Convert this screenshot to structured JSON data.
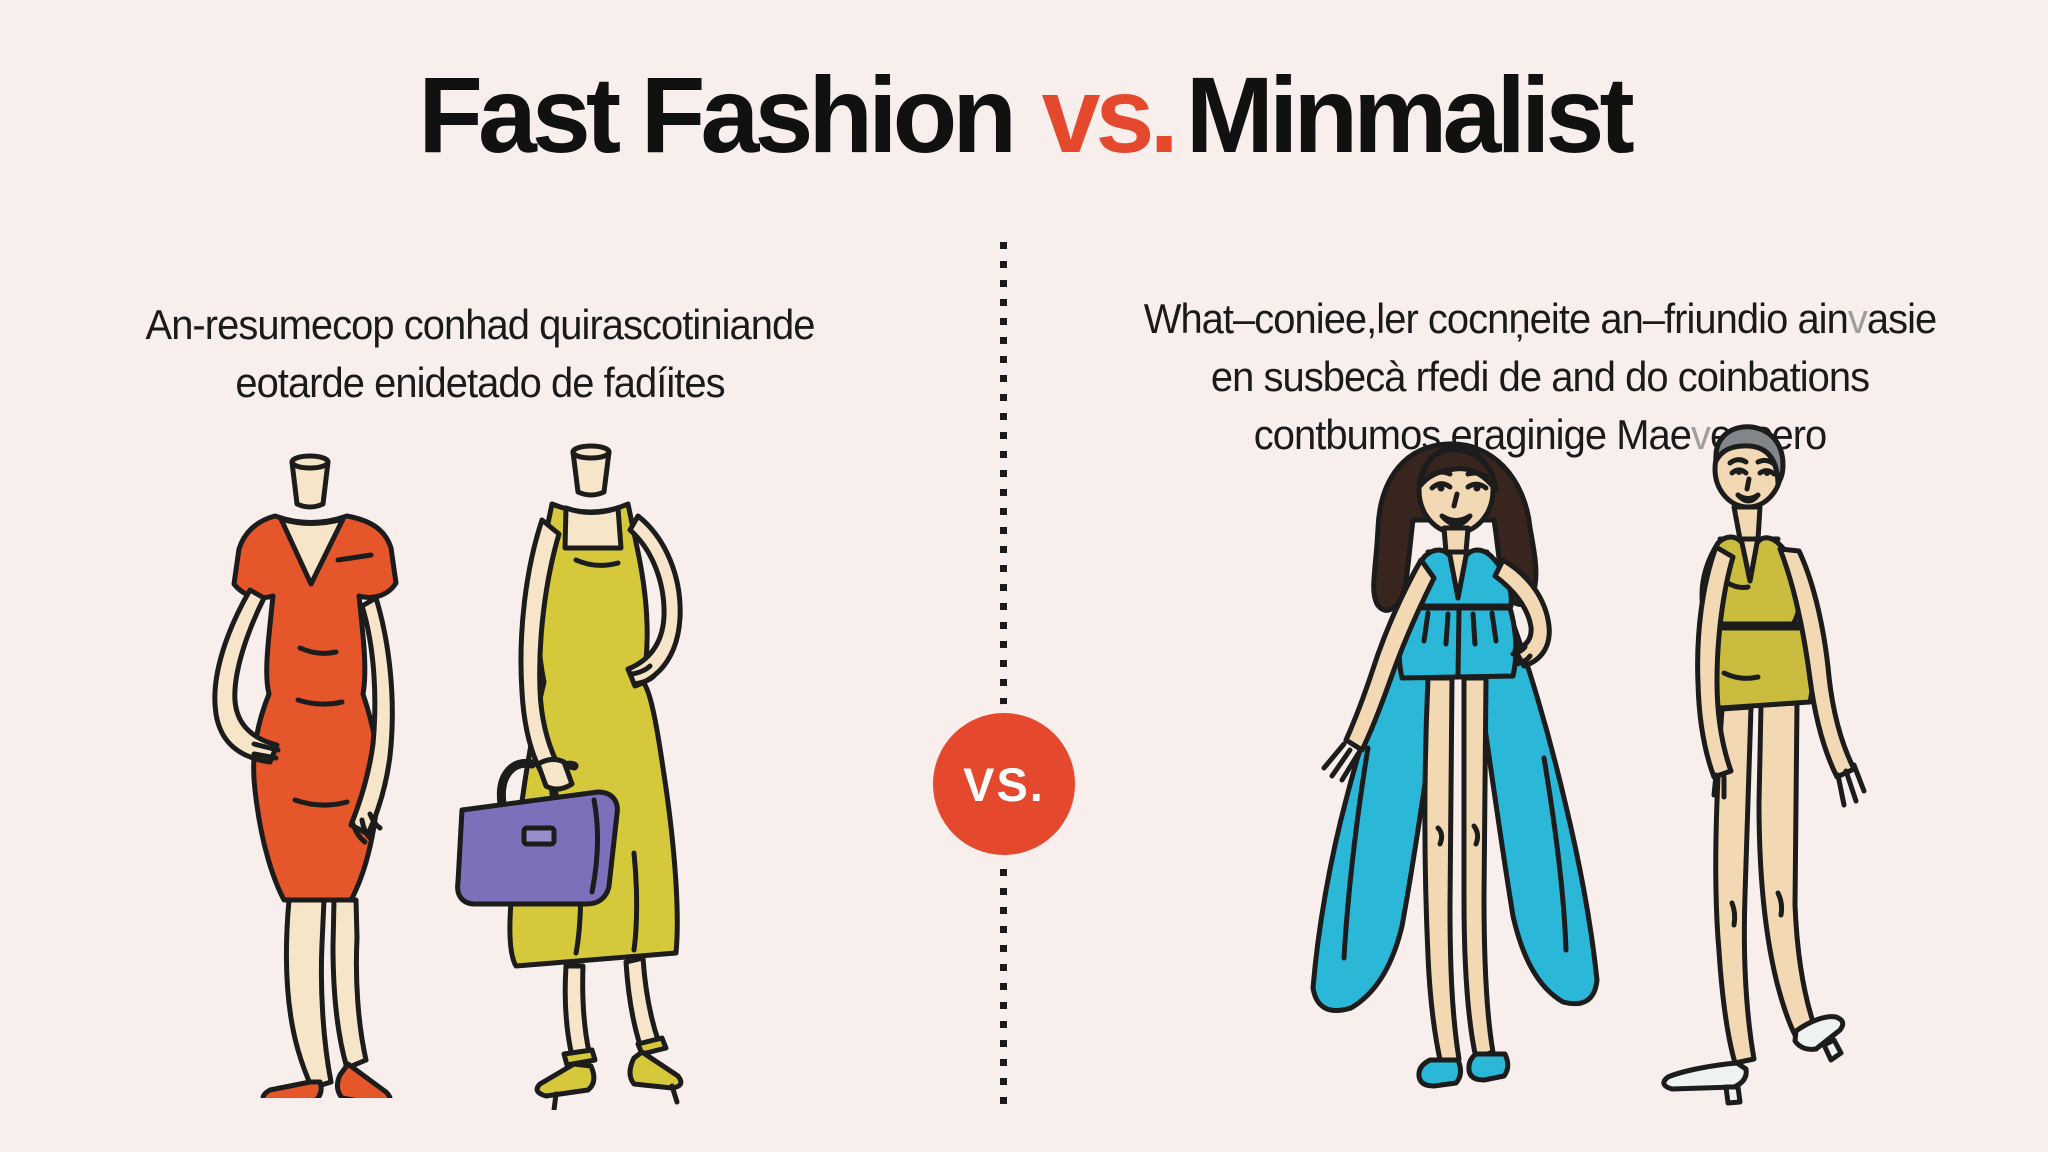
{
  "background": "#f8efed",
  "palette": {
    "accent_red": "#e5492d",
    "title_black": "#111111",
    "text_black": "#1a1a1a",
    "orange_dress": "#e6562b",
    "yellow_dress": "#d5c93b",
    "purple_handbag": "#7e6fba",
    "teal_dress": "#2ab7d8",
    "olive_dress": "#c9bc3f",
    "skin_light": "#f7e5c9",
    "skin_tan": "#f2d9b4",
    "hair_brown": "#38251d",
    "hair_gray": "#82868a",
    "shoe_white": "#eef2f1"
  },
  "title": {
    "fast_fashion": "Fast Fashion",
    "vs": "vs.",
    "minimalist": "Minmalist"
  },
  "divider": {
    "badge": "VS."
  },
  "left_panel": {
    "lines": [
      "An-resumecop conhad quirascotiniande",
      "eotarde enidetado de fadíites"
    ],
    "illustrations": [
      "orange-vneck-dress-figure",
      "yellow-midi-dress-figure-with-purple-handbag"
    ]
  },
  "right_panel": {
    "lines": [
      [
        {
          "t": "What–coniee,ler cocnņeite an–friundio ain"
        },
        {
          "t": "v",
          "muted": true
        },
        {
          "t": "asie"
        }
      ],
      [
        {
          "t": "en susbecà rfedi de and do coinbations"
        }
      ],
      [
        {
          "t": "contbumos eraginige Mae"
        },
        {
          "t": "v",
          "muted": true
        },
        {
          "t": "encero"
        }
      ]
    ],
    "illustrations": [
      "teal-gown-woman-figure",
      "olive-mini-dress-woman-figure"
    ]
  }
}
